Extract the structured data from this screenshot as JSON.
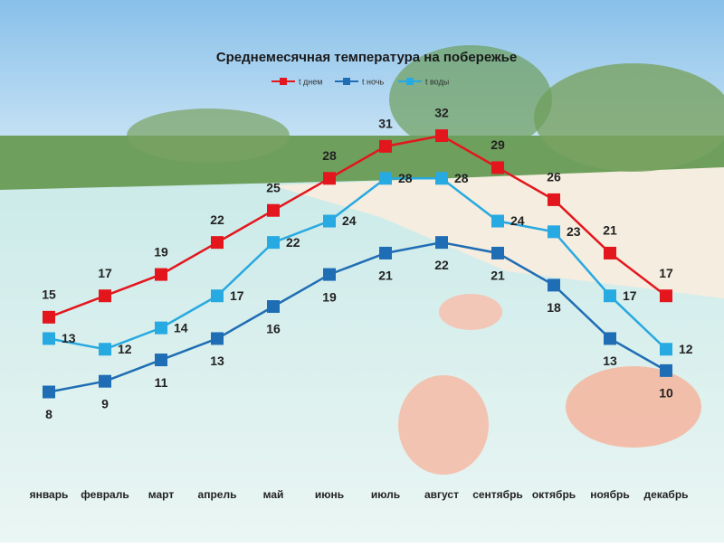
{
  "chart_data": {
    "type": "line",
    "title": "Среднемесячная температура на побережье",
    "categories": [
      "январь",
      "февраль",
      "март",
      "апрель",
      "май",
      "июнь",
      "июль",
      "август",
      "сентябрь",
      "октябрь",
      "ноябрь",
      "декабрь"
    ],
    "series": [
      {
        "name": "t днем",
        "color": "#e3161d",
        "values": [
          15,
          17,
          19,
          22,
          25,
          28,
          31,
          32,
          29,
          26,
          21,
          17
        ]
      },
      {
        "name": "t ночь",
        "color": "#1f6db4",
        "values": [
          8,
          9,
          11,
          13,
          16,
          19,
          21,
          22,
          21,
          18,
          13,
          10
        ]
      },
      {
        "name": "t воды",
        "color": "#27a9e1",
        "values": [
          13,
          12,
          14,
          17,
          22,
          24,
          28,
          28,
          24,
          23,
          17,
          12
        ]
      }
    ],
    "ylim": [
      0,
      35
    ],
    "legend": "top"
  }
}
